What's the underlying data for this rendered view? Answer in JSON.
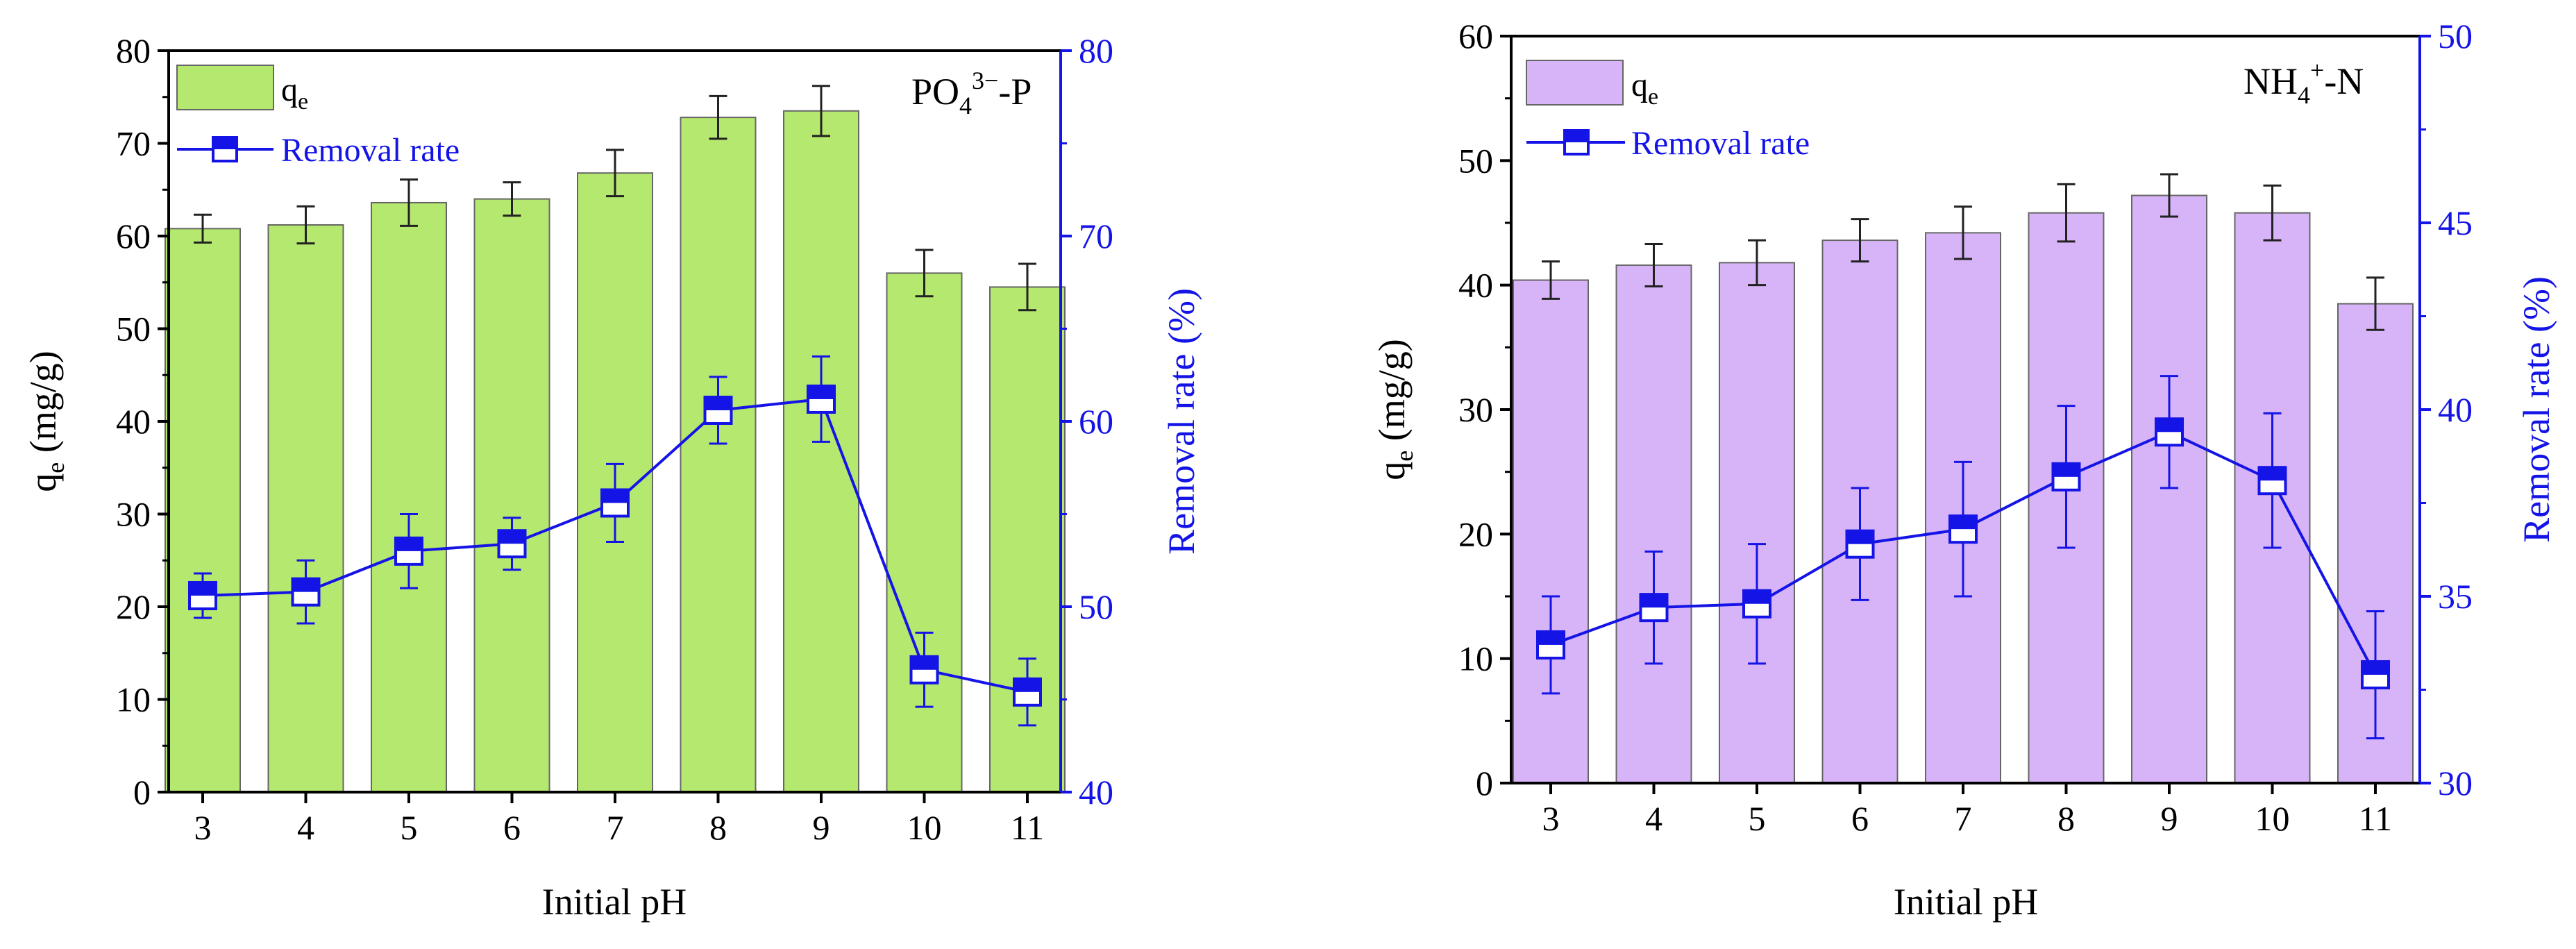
{
  "chart_data": [
    {
      "type": "bar+line",
      "label": "PO",
      "label_sub": "4",
      "label_sup": "3−",
      "label_tail": "-P",
      "categories": [
        "3",
        "4",
        "5",
        "6",
        "7",
        "8",
        "9",
        "10",
        "11"
      ],
      "xlabel": "Initial pH",
      "ylabel_main": "q",
      "ylabel_sub": "e",
      "ylabel_tail": " (mg/g)",
      "y2label": "Removal rate (%)",
      "ylim": [
        0,
        80
      ],
      "y2lim": [
        40,
        80
      ],
      "yticks": [
        0,
        10,
        20,
        30,
        40,
        50,
        60,
        70,
        80
      ],
      "y2ticks": [
        40,
        50,
        60,
        70,
        80
      ],
      "bars": {
        "legend": "q",
        "legend_sub": "e",
        "color": "#b5e86e",
        "values": [
          60.8,
          61.2,
          63.6,
          64.0,
          66.8,
          72.8,
          73.5,
          56.0,
          54.5
        ],
        "errors": [
          1.5,
          2.0,
          2.5,
          1.8,
          2.5,
          2.3,
          2.7,
          2.5,
          2.5
        ]
      },
      "line": {
        "legend": "Removal rate",
        "color": "#1414e6",
        "values": [
          50.6,
          50.8,
          53.0,
          53.4,
          55.6,
          60.6,
          61.2,
          46.6,
          45.4
        ],
        "errors": [
          1.2,
          1.7,
          2.0,
          1.4,
          2.1,
          1.8,
          2.3,
          2.0,
          1.8
        ]
      }
    },
    {
      "type": "bar+line",
      "label": "NH",
      "label_sub": "4",
      "label_sup": "+",
      "label_tail": "-N",
      "categories": [
        "3",
        "4",
        "5",
        "6",
        "7",
        "8",
        "9",
        "10",
        "11"
      ],
      "xlabel": "Initial pH",
      "ylabel_main": "q",
      "ylabel_sub": "e",
      "ylabel_tail": " (mg/g)",
      "y2label": "Removal rate (%)",
      "ylim": [
        0,
        60
      ],
      "y2lim": [
        30,
        50
      ],
      "yticks": [
        0,
        10,
        20,
        30,
        40,
        50,
        60
      ],
      "y2ticks": [
        30,
        35,
        40,
        45,
        50
      ],
      "bars": {
        "legend": "q",
        "legend_sub": "e",
        "color": "#d7b4f7",
        "values": [
          40.4,
          41.6,
          41.8,
          43.6,
          44.2,
          45.8,
          47.2,
          45.8,
          38.5
        ],
        "errors": [
          1.5,
          1.7,
          1.8,
          1.7,
          2.1,
          2.3,
          1.7,
          2.2,
          2.1
        ]
      },
      "line": {
        "legend": "Removal rate",
        "color": "#1414e6",
        "values": [
          33.7,
          34.7,
          34.8,
          36.4,
          36.8,
          38.2,
          39.4,
          38.1,
          32.9
        ],
        "errors": [
          1.3,
          1.5,
          1.6,
          1.5,
          1.8,
          1.9,
          1.5,
          1.8,
          1.7
        ]
      }
    }
  ]
}
